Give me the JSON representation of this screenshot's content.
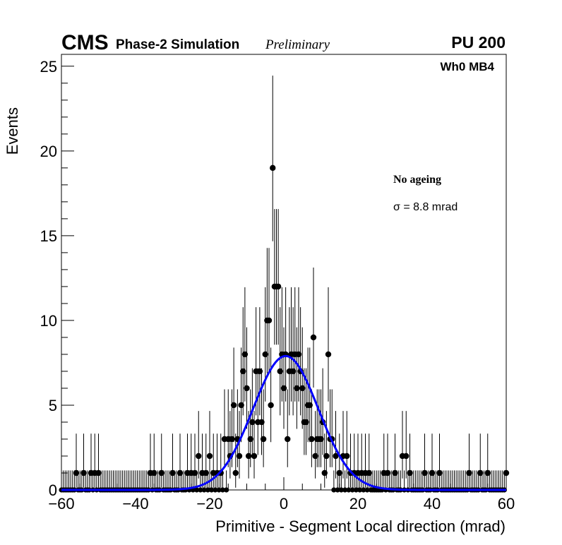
{
  "header": {
    "experiment": "CMS",
    "subtitle": "Phase-2 Simulation",
    "status": "Preliminary",
    "pileup": "PU 200"
  },
  "legend": {
    "station": "Wh0 MB4",
    "condition": "No ageing",
    "sigma_text": "σ = 8.8 mrad"
  },
  "colors": {
    "points": "#000000",
    "fit": "#0000ff",
    "axes": "#000000"
  },
  "chart_data": {
    "type": "scatter",
    "title": "",
    "xlabel": "Primitive - Segment Local direction (mrad)",
    "ylabel": "Events",
    "xlim": [
      -60,
      60
    ],
    "ylim": [
      0,
      25.7
    ],
    "x_ticks": [
      -60,
      -40,
      -20,
      0,
      20,
      40,
      60
    ],
    "x_tick_labels": [
      "−60",
      "−40",
      "−20",
      "0",
      "20",
      "40",
      "60"
    ],
    "y_ticks": [
      0,
      5,
      10,
      15,
      20,
      25
    ],
    "y_tick_labels": [
      "0",
      "5",
      "10",
      "15",
      "20",
      "25"
    ],
    "bin_width": 0.5,
    "series": [
      {
        "name": "Data",
        "style": "points-with-poisson-errors",
        "points": [
          [
            -56,
            1
          ],
          [
            -54,
            1
          ],
          [
            -52,
            1
          ],
          [
            -51,
            1
          ],
          [
            -50,
            1
          ],
          [
            -36,
            1
          ],
          [
            -35,
            1
          ],
          [
            -33,
            1
          ],
          [
            -30,
            1
          ],
          [
            -28,
            1
          ],
          [
            -26,
            1
          ],
          [
            -25,
            1
          ],
          [
            -24,
            1
          ],
          [
            -23,
            2
          ],
          [
            -22,
            1
          ],
          [
            -21,
            1
          ],
          [
            -20,
            2
          ],
          [
            -19,
            1
          ],
          [
            -18,
            1
          ],
          [
            -17,
            1
          ],
          [
            -16,
            3
          ],
          [
            -15,
            3
          ],
          [
            -14.5,
            2
          ],
          [
            -14,
            3
          ],
          [
            -13.5,
            5
          ],
          [
            -13,
            1
          ],
          [
            -12.5,
            3
          ],
          [
            -12,
            2
          ],
          [
            -11.5,
            5
          ],
          [
            -11,
            7
          ],
          [
            -10.5,
            8
          ],
          [
            -10,
            6
          ],
          [
            -9.5,
            2
          ],
          [
            -9,
            3
          ],
          [
            -8.5,
            4
          ],
          [
            -8,
            2
          ],
          [
            -7.5,
            7
          ],
          [
            -7,
            4
          ],
          [
            -6.5,
            7
          ],
          [
            -6,
            4
          ],
          [
            -5.5,
            3
          ],
          [
            -5,
            8
          ],
          [
            -4.5,
            10
          ],
          [
            -4,
            10
          ],
          [
            -3.5,
            5
          ],
          [
            -3,
            19
          ],
          [
            -2.5,
            12
          ],
          [
            -2,
            12
          ],
          [
            -1.5,
            12
          ],
          [
            -1,
            7
          ],
          [
            -0.5,
            8
          ],
          [
            0,
            6
          ],
          [
            0.5,
            8
          ],
          [
            1,
            3
          ],
          [
            1.5,
            7
          ],
          [
            2,
            8
          ],
          [
            2.5,
            7
          ],
          [
            3,
            8
          ],
          [
            3.5,
            6
          ],
          [
            4,
            8
          ],
          [
            4.5,
            7
          ],
          [
            5,
            6
          ],
          [
            5.5,
            4
          ],
          [
            6,
            4
          ],
          [
            6.5,
            5
          ],
          [
            7,
            5
          ],
          [
            7.5,
            3
          ],
          [
            8,
            9
          ],
          [
            8.5,
            2
          ],
          [
            9,
            3
          ],
          [
            9.5,
            3
          ],
          [
            10,
            3
          ],
          [
            10.5,
            4
          ],
          [
            11,
            1
          ],
          [
            11.5,
            2
          ],
          [
            12,
            8
          ],
          [
            12.5,
            3
          ],
          [
            13,
            3
          ],
          [
            14,
            2
          ],
          [
            15,
            1
          ],
          [
            16,
            2
          ],
          [
            17,
            2
          ],
          [
            18,
            1
          ],
          [
            19,
            1
          ],
          [
            20,
            1
          ],
          [
            21,
            1
          ],
          [
            22,
            1
          ],
          [
            23,
            1
          ],
          [
            27,
            1
          ],
          [
            28,
            1
          ],
          [
            30,
            1
          ],
          [
            32,
            2
          ],
          [
            33,
            2
          ],
          [
            34,
            1
          ],
          [
            38,
            1
          ],
          [
            40,
            1
          ],
          [
            42,
            1
          ],
          [
            50,
            1
          ],
          [
            53,
            1
          ],
          [
            55,
            1
          ],
          [
            60,
            1
          ]
        ]
      },
      {
        "name": "Gaussian fit",
        "style": "line",
        "mean": 0.5,
        "sigma": 8.8,
        "amplitude": 7.9
      }
    ]
  }
}
